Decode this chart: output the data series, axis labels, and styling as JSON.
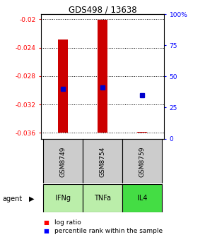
{
  "title": "GDS498 / 13638",
  "samples": [
    "GSM8749",
    "GSM8754",
    "GSM8759"
  ],
  "agents": [
    "IFNg",
    "TNFa",
    "IL4"
  ],
  "log_ratios": [
    -0.0229,
    -0.02005,
    -0.03585
  ],
  "log_ratio_base": -0.036,
  "percentile_ranks": [
    40,
    41,
    35
  ],
  "ylim": [
    -0.0368,
    -0.0193
  ],
  "yticks_left": [
    -0.036,
    -0.032,
    -0.028,
    -0.024,
    -0.02
  ],
  "ytick_labels_left": [
    "-0.036",
    "-0.032",
    "-0.028",
    "-0.024",
    "-0.02"
  ],
  "yticks_right_pct": [
    0,
    25,
    50,
    75,
    100
  ],
  "ytick_labels_right": [
    "0",
    "25",
    "50",
    "75",
    "100%"
  ],
  "bar_color": "#cc0000",
  "dot_color": "#0000cc",
  "sample_bg": "#cccccc",
  "agent_colors": [
    "#bbeeaa",
    "#bbeeaa",
    "#44dd44"
  ],
  "bar_width": 0.25,
  "x_positions": [
    0,
    1,
    2
  ]
}
